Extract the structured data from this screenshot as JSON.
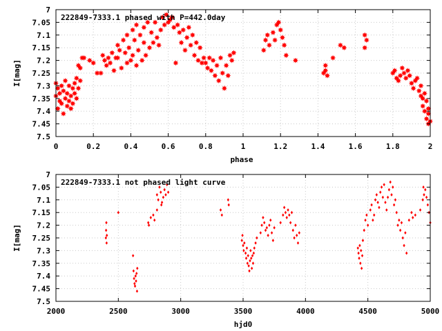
{
  "chart_data": [
    {
      "type": "scatter",
      "title": "222849-7333.1 phased with P=442.0day",
      "xlabel": "phase",
      "ylabel": "I[mag]",
      "xlim": [
        0,
        2
      ],
      "ylim": [
        7.5,
        7
      ],
      "y_inverted": true,
      "grid": true,
      "marker": "filled-star",
      "color": "#ff0000",
      "x_ticks": [
        "0",
        "0.2",
        "0.4",
        "0.6",
        "0.8",
        "1",
        "1.2",
        "1.4",
        "1.6",
        "1.8",
        "2"
      ],
      "y_ticks": [
        "7",
        "7.05",
        "7.1",
        "7.15",
        "7.2",
        "7.25",
        "7.3",
        "7.35",
        "7.4",
        "7.45",
        "7.5"
      ],
      "x_tick_values": [
        0,
        0.2,
        0.4,
        0.6,
        0.8,
        1,
        1.2,
        1.4,
        1.6,
        1.8,
        2
      ],
      "y_tick_values": [
        7,
        7.05,
        7.1,
        7.15,
        7.2,
        7.25,
        7.3,
        7.35,
        7.4,
        7.45,
        7.5
      ],
      "points": [
        [
          0.0,
          7.29
        ],
        [
          0.0,
          7.34
        ],
        [
          0.01,
          7.39
        ],
        [
          0.01,
          7.31
        ],
        [
          0.02,
          7.36
        ],
        [
          0.02,
          7.33
        ],
        [
          0.03,
          7.3
        ],
        [
          0.03,
          7.37
        ],
        [
          0.04,
          7.41
        ],
        [
          0.04,
          7.32
        ],
        [
          0.05,
          7.35
        ],
        [
          0.05,
          7.28
        ],
        [
          0.06,
          7.38
        ],
        [
          0.06,
          7.33
        ],
        [
          0.07,
          7.36
        ],
        [
          0.07,
          7.3
        ],
        [
          0.08,
          7.34
        ],
        [
          0.08,
          7.39
        ],
        [
          0.09,
          7.31
        ],
        [
          0.09,
          7.37
        ],
        [
          0.1,
          7.29
        ],
        [
          0.1,
          7.33
        ],
        [
          0.11,
          7.35
        ],
        [
          0.11,
          7.27
        ],
        [
          0.12,
          7.31
        ],
        [
          0.12,
          7.22
        ],
        [
          0.13,
          7.28
        ],
        [
          0.13,
          7.23
        ],
        [
          0.14,
          7.19
        ],
        [
          0.15,
          7.19
        ],
        [
          0.18,
          7.2
        ],
        [
          0.2,
          7.21
        ],
        [
          0.22,
          7.25
        ],
        [
          0.24,
          7.25
        ],
        [
          0.25,
          7.18
        ],
        [
          0.26,
          7.2
        ],
        [
          0.27,
          7.22
        ],
        [
          0.28,
          7.19
        ],
        [
          0.29,
          7.21
        ],
        [
          0.3,
          7.17
        ],
        [
          0.31,
          7.24
        ],
        [
          0.32,
          7.19
        ],
        [
          0.33,
          7.14
        ],
        [
          0.33,
          7.19
        ],
        [
          0.34,
          7.16
        ],
        [
          0.35,
          7.23
        ],
        [
          0.36,
          7.12
        ],
        [
          0.37,
          7.17
        ],
        [
          0.38,
          7.21
        ],
        [
          0.38,
          7.1
        ],
        [
          0.39,
          7.15
        ],
        [
          0.4,
          7.2
        ],
        [
          0.41,
          7.08
        ],
        [
          0.41,
          7.18
        ],
        [
          0.42,
          7.12
        ],
        [
          0.43,
          7.22
        ],
        [
          0.43,
          7.06
        ],
        [
          0.44,
          7.16
        ],
        [
          0.45,
          7.1
        ],
        [
          0.46,
          7.2
        ],
        [
          0.47,
          7.13
        ],
        [
          0.47,
          7.07
        ],
        [
          0.48,
          7.18
        ],
        [
          0.49,
          7.05
        ],
        [
          0.5,
          7.15
        ],
        [
          0.51,
          7.09
        ],
        [
          0.52,
          7.13
        ],
        [
          0.53,
          7.05
        ],
        [
          0.54,
          7.11
        ],
        [
          0.55,
          7.14
        ],
        [
          0.56,
          7.08
        ],
        [
          0.57,
          7.03
        ],
        [
          0.58,
          7.06
        ],
        [
          0.59,
          7.02
        ],
        [
          0.6,
          7.05
        ],
        [
          0.61,
          7.04
        ],
        [
          0.62,
          7.03
        ],
        [
          0.63,
          7.07
        ],
        [
          0.64,
          7.21
        ],
        [
          0.65,
          7.06
        ],
        [
          0.66,
          7.09
        ],
        [
          0.67,
          7.13
        ],
        [
          0.68,
          7.08
        ],
        [
          0.69,
          7.16
        ],
        [
          0.7,
          7.11
        ],
        [
          0.71,
          7.07
        ],
        [
          0.72,
          7.14
        ],
        [
          0.73,
          7.1
        ],
        [
          0.74,
          7.18
        ],
        [
          0.75,
          7.13
        ],
        [
          0.76,
          7.2
        ],
        [
          0.77,
          7.15
        ],
        [
          0.78,
          7.21
        ],
        [
          0.79,
          7.19
        ],
        [
          0.8,
          7.21
        ],
        [
          0.81,
          7.23
        ],
        [
          0.82,
          7.19
        ],
        [
          0.83,
          7.24
        ],
        [
          0.84,
          7.2
        ],
        [
          0.85,
          7.26
        ],
        [
          0.86,
          7.22
        ],
        [
          0.87,
          7.28
        ],
        [
          0.88,
          7.19
        ],
        [
          0.89,
          7.25
        ],
        [
          0.9,
          7.31
        ],
        [
          0.91,
          7.22
        ],
        [
          0.92,
          7.26
        ],
        [
          0.93,
          7.18
        ],
        [
          0.94,
          7.2
        ],
        [
          0.95,
          7.17
        ],
        [
          1.11,
          7.16
        ],
        [
          1.12,
          7.12
        ],
        [
          1.13,
          7.1
        ],
        [
          1.14,
          7.14
        ],
        [
          1.16,
          7.09
        ],
        [
          1.17,
          7.12
        ],
        [
          1.18,
          7.06
        ],
        [
          1.19,
          7.05
        ],
        [
          1.2,
          7.08
        ],
        [
          1.21,
          7.11
        ],
        [
          1.22,
          7.14
        ],
        [
          1.23,
          7.18
        ],
        [
          1.28,
          7.2
        ],
        [
          1.43,
          7.25
        ],
        [
          1.44,
          7.24
        ],
        [
          1.44,
          7.22
        ],
        [
          1.45,
          7.26
        ],
        [
          1.48,
          7.19
        ],
        [
          1.52,
          7.14
        ],
        [
          1.54,
          7.15
        ],
        [
          1.65,
          7.1
        ],
        [
          1.65,
          7.15
        ],
        [
          1.66,
          7.12
        ],
        [
          1.8,
          7.25
        ],
        [
          1.81,
          7.24
        ],
        [
          1.82,
          7.27
        ],
        [
          1.83,
          7.28
        ],
        [
          1.84,
          7.26
        ],
        [
          1.85,
          7.23
        ],
        [
          1.86,
          7.25
        ],
        [
          1.87,
          7.27
        ],
        [
          1.88,
          7.24
        ],
        [
          1.89,
          7.26
        ],
        [
          1.9,
          7.29
        ],
        [
          1.91,
          7.31
        ],
        [
          1.92,
          7.28
        ],
        [
          1.93,
          7.27
        ],
        [
          1.94,
          7.32
        ],
        [
          1.95,
          7.3
        ],
        [
          1.96,
          7.38
        ],
        [
          1.97,
          7.4
        ],
        [
          1.97,
          7.33
        ],
        [
          1.98,
          7.43
        ],
        [
          1.99,
          7.45
        ],
        [
          1.99,
          7.39
        ],
        [
          1.98,
          7.36
        ],
        [
          2.0,
          7.44
        ],
        [
          1.96,
          7.35
        ],
        [
          1.95,
          7.34
        ],
        [
          1.99,
          7.41
        ]
      ]
    },
    {
      "type": "scatter",
      "title": "222849-7333.1 not phased light curve",
      "xlabel": "hjd0",
      "ylabel": "I[mag]",
      "xlim": [
        2000,
        5000
      ],
      "ylim": [
        7.5,
        7
      ],
      "y_inverted": true,
      "grid": true,
      "marker": "diamond",
      "color": "#ff0000",
      "x_ticks": [
        "2000",
        "2500",
        "3000",
        "3500",
        "4000",
        "4500",
        "5000"
      ],
      "y_ticks": [
        "7",
        "7.05",
        "7.1",
        "7.15",
        "7.2",
        "7.25",
        "7.3",
        "7.35",
        "7.4",
        "7.45",
        "7.5"
      ],
      "x_tick_values": [
        2000,
        2500,
        3000,
        3500,
        4000,
        4500,
        5000
      ],
      "y_tick_values": [
        7,
        7.05,
        7.1,
        7.15,
        7.2,
        7.25,
        7.3,
        7.35,
        7.4,
        7.45,
        7.5
      ],
      "points": [
        [
          2400,
          7.25
        ],
        [
          2402,
          7.22
        ],
        [
          2404,
          7.19
        ],
        [
          2406,
          7.27
        ],
        [
          2408,
          7.24
        ],
        [
          2500,
          7.15
        ],
        [
          2618,
          7.32
        ],
        [
          2622,
          7.38
        ],
        [
          2626,
          7.41
        ],
        [
          2630,
          7.43
        ],
        [
          2634,
          7.44
        ],
        [
          2638,
          7.4
        ],
        [
          2642,
          7.42
        ],
        [
          2646,
          7.39
        ],
        [
          2650,
          7.46
        ],
        [
          2652,
          7.37
        ],
        [
          2740,
          7.19
        ],
        [
          2745,
          7.2
        ],
        [
          2760,
          7.17
        ],
        [
          2780,
          7.16
        ],
        [
          2790,
          7.18
        ],
        [
          2810,
          7.08
        ],
        [
          2820,
          7.1
        ],
        [
          2830,
          7.05
        ],
        [
          2840,
          7.07
        ],
        [
          2850,
          7.11
        ],
        [
          2860,
          7.09
        ],
        [
          2870,
          7.06
        ],
        [
          2880,
          7.08
        ],
        [
          2890,
          7.04
        ],
        [
          2900,
          7.07
        ],
        [
          2810,
          7.14
        ],
        [
          2845,
          7.12
        ],
        [
          3320,
          7.14
        ],
        [
          3330,
          7.16
        ],
        [
          3380,
          7.1
        ],
        [
          3385,
          7.12
        ],
        [
          3490,
          7.26
        ],
        [
          3495,
          7.24
        ],
        [
          3500,
          7.28
        ],
        [
          3505,
          7.3
        ],
        [
          3510,
          7.27
        ],
        [
          3520,
          7.31
        ],
        [
          3525,
          7.33
        ],
        [
          3530,
          7.29
        ],
        [
          3535,
          7.35
        ],
        [
          3540,
          7.32
        ],
        [
          3545,
          7.36
        ],
        [
          3550,
          7.38
        ],
        [
          3555,
          7.34
        ],
        [
          3560,
          7.3
        ],
        [
          3565,
          7.33
        ],
        [
          3570,
          7.37
        ],
        [
          3575,
          7.32
        ],
        [
          3580,
          7.35
        ],
        [
          3585,
          7.31
        ],
        [
          3590,
          7.29
        ],
        [
          3600,
          7.27
        ],
        [
          3610,
          7.25
        ],
        [
          3640,
          7.23
        ],
        [
          3650,
          7.2
        ],
        [
          3660,
          7.17
        ],
        [
          3670,
          7.19
        ],
        [
          3680,
          7.22
        ],
        [
          3690,
          7.21
        ],
        [
          3700,
          7.24
        ],
        [
          3710,
          7.2
        ],
        [
          3720,
          7.18
        ],
        [
          3730,
          7.23
        ],
        [
          3740,
          7.26
        ],
        [
          3750,
          7.21
        ],
        [
          3800,
          7.19
        ],
        [
          3820,
          7.16
        ],
        [
          3830,
          7.13
        ],
        [
          3840,
          7.15
        ],
        [
          3850,
          7.17
        ],
        [
          3860,
          7.14
        ],
        [
          3870,
          7.16
        ],
        [
          3880,
          7.19
        ],
        [
          3890,
          7.15
        ],
        [
          3900,
          7.22
        ],
        [
          3910,
          7.25
        ],
        [
          3920,
          7.2
        ],
        [
          3930,
          7.24
        ],
        [
          3940,
          7.27
        ],
        [
          3950,
          7.23
        ],
        [
          4420,
          7.29
        ],
        [
          4425,
          7.31
        ],
        [
          4430,
          7.33
        ],
        [
          4435,
          7.28
        ],
        [
          4440,
          7.35
        ],
        [
          4445,
          7.3
        ],
        [
          4450,
          7.37
        ],
        [
          4455,
          7.32
        ],
        [
          4460,
          7.26
        ],
        [
          4470,
          7.22
        ],
        [
          4480,
          7.18
        ],
        [
          4490,
          7.16
        ],
        [
          4500,
          7.2
        ],
        [
          4520,
          7.14
        ],
        [
          4530,
          7.12
        ],
        [
          4540,
          7.18
        ],
        [
          4550,
          7.16
        ],
        [
          4560,
          7.1
        ],
        [
          4570,
          7.08
        ],
        [
          4580,
          7.11
        ],
        [
          4590,
          7.13
        ],
        [
          4600,
          7.07
        ],
        [
          4610,
          7.05
        ],
        [
          4620,
          7.09
        ],
        [
          4630,
          7.04
        ],
        [
          4640,
          7.11
        ],
        [
          4650,
          7.14
        ],
        [
          4660,
          7.09
        ],
        [
          4670,
          7.06
        ],
        [
          4680,
          7.03
        ],
        [
          4690,
          7.08
        ],
        [
          4700,
          7.05
        ],
        [
          4710,
          7.12
        ],
        [
          4720,
          7.1
        ],
        [
          4730,
          7.15
        ],
        [
          4740,
          7.2
        ],
        [
          4750,
          7.18
        ],
        [
          4760,
          7.22
        ],
        [
          4770,
          7.19
        ],
        [
          4780,
          7.25
        ],
        [
          4790,
          7.28
        ],
        [
          4800,
          7.23
        ],
        [
          4810,
          7.31
        ],
        [
          4830,
          7.18
        ],
        [
          4850,
          7.15
        ],
        [
          4860,
          7.17
        ],
        [
          4880,
          7.16
        ],
        [
          4920,
          7.14
        ],
        [
          4940,
          7.1
        ],
        [
          4950,
          7.08
        ],
        [
          4960,
          7.06
        ],
        [
          4970,
          7.09
        ],
        [
          4980,
          7.12
        ],
        [
          4990,
          7.15
        ],
        [
          5000,
          7.19
        ],
        [
          4945,
          7.05
        ]
      ]
    }
  ]
}
